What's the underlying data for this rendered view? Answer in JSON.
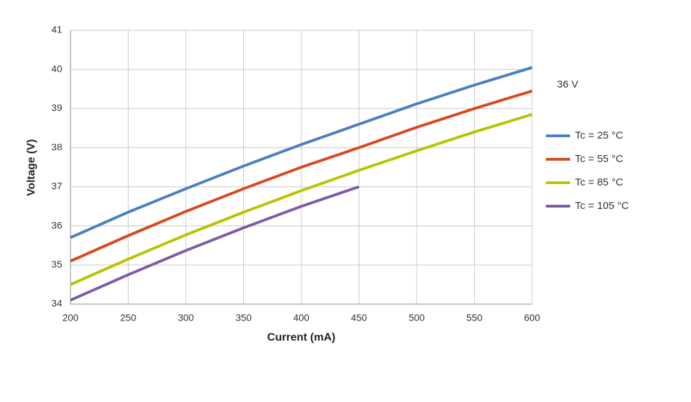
{
  "chart_data": {
    "type": "line",
    "x_label": "Current (mA)",
    "y_label": "Voltage (V)",
    "annotation": "36 V",
    "x": [
      200,
      250,
      300,
      350,
      400,
      450,
      500,
      550,
      600
    ],
    "series": [
      {
        "name": "Tc = 25 °C",
        "color": "#4a7fc1",
        "values": [
          35.7,
          36.35,
          36.95,
          37.53,
          38.08,
          38.6,
          39.12,
          39.6,
          40.05
        ]
      },
      {
        "name": "Tc = 55 °C",
        "color": "#d9481e",
        "values": [
          35.1,
          35.75,
          36.37,
          36.95,
          37.5,
          38.0,
          38.52,
          39.0,
          39.45
        ]
      },
      {
        "name": "Tc = 85 °C",
        "color": "#b8c400",
        "values": [
          34.5,
          35.15,
          35.77,
          36.35,
          36.9,
          37.42,
          37.92,
          38.4,
          38.85
        ]
      },
      {
        "name": "Tc = 105 °C",
        "color": "#7e5ba6",
        "values": [
          34.1,
          34.75,
          35.37,
          35.95,
          36.5,
          37.0,
          null,
          null,
          null
        ]
      }
    ],
    "xlim": [
      200,
      600
    ],
    "xticks": [
      200,
      250,
      300,
      350,
      400,
      450,
      500,
      550,
      600
    ],
    "ylim": [
      34,
      41
    ],
    "yticks": [
      34,
      35,
      36,
      37,
      38,
      39,
      40,
      41
    ],
    "grid": true,
    "legend": "right"
  }
}
